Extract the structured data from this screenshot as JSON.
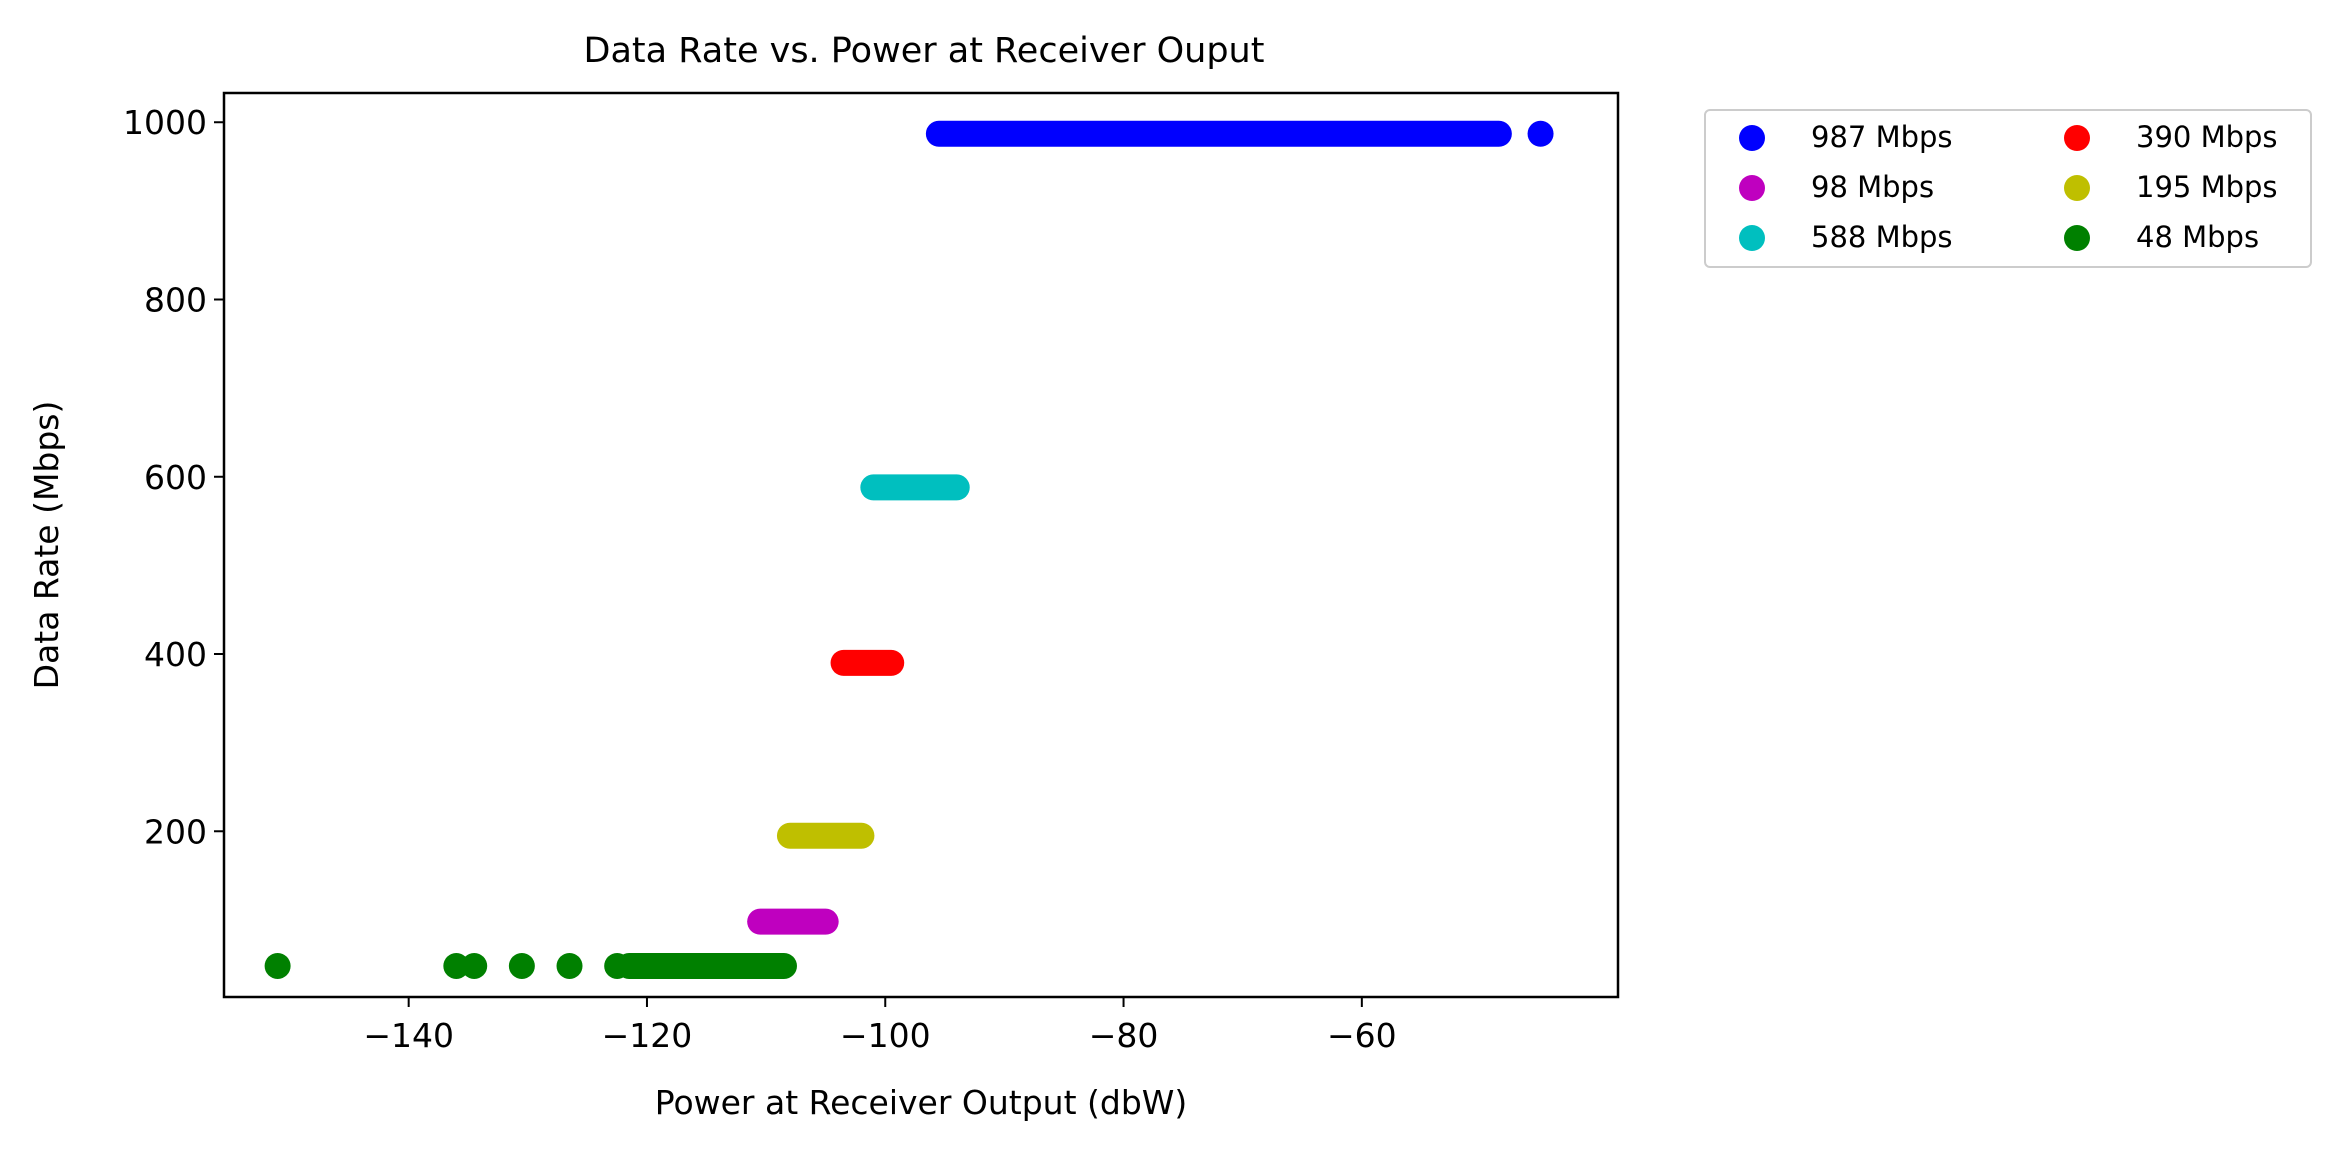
{
  "chart_data": {
    "type": "scatter",
    "title": "Data Rate vs. Power at Receiver Ouput",
    "xlabel": "Power at Receiver Output (dbW)",
    "ylabel": "Data Rate (Mbps)",
    "xlim": [
      -155.5,
      -38.5
    ],
    "ylim": [
      13,
      1033
    ],
    "xticks": [
      -140,
      -120,
      -100,
      -80,
      -60
    ],
    "xtick_labels": [
      "−140",
      "−120",
      "−100",
      "−80",
      "−60"
    ],
    "yticks": [
      200,
      400,
      600,
      800,
      1000
    ],
    "ytick_labels": [
      "200",
      "400",
      "600",
      "800",
      "1000"
    ],
    "grid": false,
    "legend_position": "outside-upper-right",
    "legend_columns": 2,
    "series": [
      {
        "name": "987 Mbps",
        "color": "#0000ff",
        "y": 987,
        "segments": [
          [
            -95.5,
            -48.5
          ]
        ],
        "points": [
          -45
        ]
      },
      {
        "name": "98 Mbps",
        "color": "#bf00bf",
        "y": 98,
        "segments": [
          [
            -110.5,
            -105
          ]
        ],
        "points": []
      },
      {
        "name": "588 Mbps",
        "color": "#00bfbf",
        "y": 588,
        "segments": [
          [
            -101,
            -94
          ]
        ],
        "points": []
      },
      {
        "name": "390 Mbps",
        "color": "#ff0000",
        "y": 390,
        "segments": [
          [
            -103.5,
            -99.5
          ]
        ],
        "points": []
      },
      {
        "name": "195 Mbps",
        "color": "#bfbf00",
        "y": 195,
        "segments": [
          [
            -108,
            -102
          ]
        ],
        "points": []
      },
      {
        "name": "48 Mbps",
        "color": "#008000",
        "y": 48,
        "segments": [
          [
            -121.5,
            -108.5
          ]
        ],
        "points": [
          -151,
          -136,
          -134.5,
          -130.5,
          -126.5,
          -122.5
        ]
      }
    ]
  }
}
